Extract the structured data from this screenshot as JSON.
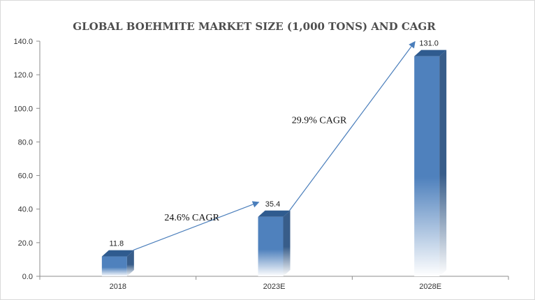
{
  "chart_data": {
    "type": "bar",
    "title": "GLOBAL BOEHMITE MARKET SIZE (1,000 TONS) AND CAGR",
    "categories": [
      "2018",
      "2023E",
      "2028E"
    ],
    "values": [
      11.8,
      35.4,
      131.0
    ],
    "value_labels": [
      "11.8",
      "35.4",
      "131.0"
    ],
    "ylim": [
      0,
      140
    ],
    "yticks": [
      "0.0",
      "20.0",
      "40.0",
      "60.0",
      "80.0",
      "100.0",
      "120.0",
      "140.0"
    ],
    "xlabel": "",
    "ylabel": "",
    "grid": false,
    "bar_style": "3d",
    "annotations": [
      {
        "text": "24.6% CAGR",
        "from": "2018",
        "to": "2023E"
      },
      {
        "text": "29.9% CAGR",
        "from": "2023E",
        "to": "2028E"
      }
    ],
    "colors": {
      "bar_front": "#4f81bd",
      "bar_side": "#385d8a",
      "bar_top": "#2f5b8f",
      "arrow": "#4a7ebb",
      "axis": "#8c8c8c"
    }
  }
}
